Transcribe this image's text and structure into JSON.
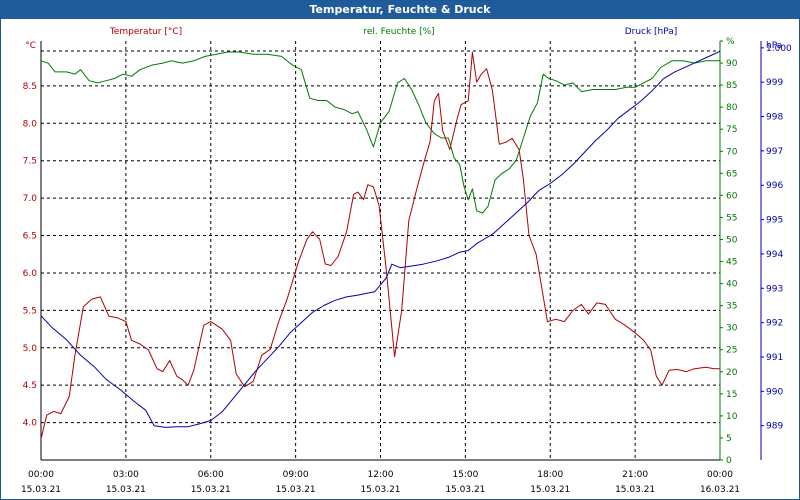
{
  "window": {
    "title": "Temperatur, Feuchte & Druck"
  },
  "colors": {
    "temperature": "#b00000",
    "humidity": "#007a00",
    "pressure": "#0000b0",
    "grid": "#000000",
    "titlebar": "#1f5c99"
  },
  "chart_data": {
    "type": "line",
    "title": "Temperatur, Feuchte & Druck",
    "x_labels": [
      {
        "time": "00:00",
        "date": "15.03.21"
      },
      {
        "time": "03:00",
        "date": "15.03.21"
      },
      {
        "time": "06:00",
        "date": "15.03.21"
      },
      {
        "time": "09:00",
        "date": "15.03.21"
      },
      {
        "time": "12:00",
        "date": "15.03.21"
      },
      {
        "time": "15:00",
        "date": "15.03.21"
      },
      {
        "time": "18:00",
        "date": "15.03.21"
      },
      {
        "time": "21:00",
        "date": "15.03.21"
      },
      {
        "time": "00:00",
        "date": "16.03.21"
      }
    ],
    "xlim": [
      0,
      24
    ],
    "axes": {
      "temperature": {
        "label": "Temperatur [°C]",
        "unit": "°C",
        "ylim": [
          3.5,
          9.1
        ],
        "ticks": [
          "4.0",
          "4.5",
          "5.0",
          "5.5",
          "6.0",
          "6.5",
          "7.0",
          "7.5",
          "8.0",
          "8.5"
        ],
        "tick_values": [
          4.0,
          4.5,
          5.0,
          5.5,
          6.0,
          6.5,
          7.0,
          7.5,
          8.0,
          8.5
        ]
      },
      "humidity": {
        "label": "rel. Feuchte [%]",
        "unit": "%",
        "ylim": [
          0,
          95
        ],
        "ticks": [
          "0",
          "5",
          "10",
          "15",
          "20",
          "25",
          "30",
          "35",
          "40",
          "45",
          "50",
          "55",
          "60",
          "65",
          "70",
          "75",
          "80",
          "85",
          "90",
          "95"
        ],
        "tick_values": [
          0,
          5,
          10,
          15,
          20,
          25,
          30,
          35,
          40,
          45,
          50,
          55,
          60,
          65,
          70,
          75,
          80,
          85,
          90,
          95
        ]
      },
      "pressure": {
        "label": "Druck [hPa]",
        "unit": "hPa",
        "ylim": [
          988.0,
          1000.2
        ],
        "ticks": [
          "989",
          "990",
          "991",
          "992",
          "993",
          "994",
          "995",
          "996",
          "997",
          "998",
          "999",
          "1.000"
        ],
        "tick_values": [
          989,
          990,
          991,
          992,
          993,
          994,
          995,
          996,
          997,
          998,
          999,
          1000
        ]
      }
    },
    "series": [
      {
        "name": "Temperatur [°C]",
        "axis": "temperature",
        "points": [
          [
            0.0,
            3.78
          ],
          [
            0.2,
            4.1
          ],
          [
            0.45,
            4.15
          ],
          [
            0.7,
            4.12
          ],
          [
            1.0,
            4.35
          ],
          [
            1.2,
            4.9
          ],
          [
            1.5,
            5.55
          ],
          [
            1.8,
            5.65
          ],
          [
            2.1,
            5.68
          ],
          [
            2.4,
            5.42
          ],
          [
            2.7,
            5.4
          ],
          [
            3.0,
            5.35
          ],
          [
            3.2,
            5.1
          ],
          [
            3.5,
            5.05
          ],
          [
            3.8,
            4.97
          ],
          [
            4.1,
            4.72
          ],
          [
            4.3,
            4.68
          ],
          [
            4.55,
            4.83
          ],
          [
            4.8,
            4.62
          ],
          [
            5.0,
            4.57
          ],
          [
            5.2,
            4.5
          ],
          [
            5.4,
            4.7
          ],
          [
            5.75,
            5.3
          ],
          [
            6.0,
            5.35
          ],
          [
            6.4,
            5.25
          ],
          [
            6.7,
            5.1
          ],
          [
            6.9,
            4.65
          ],
          [
            7.2,
            4.48
          ],
          [
            7.5,
            4.55
          ],
          [
            7.8,
            4.9
          ],
          [
            8.1,
            4.98
          ],
          [
            8.4,
            5.35
          ],
          [
            8.7,
            5.65
          ],
          [
            9.1,
            6.15
          ],
          [
            9.4,
            6.45
          ],
          [
            9.6,
            6.55
          ],
          [
            9.85,
            6.45
          ],
          [
            10.05,
            6.12
          ],
          [
            10.25,
            6.1
          ],
          [
            10.5,
            6.22
          ],
          [
            10.8,
            6.55
          ],
          [
            11.05,
            7.05
          ],
          [
            11.2,
            7.08
          ],
          [
            11.4,
            6.98
          ],
          [
            11.55,
            7.18
          ],
          [
            11.75,
            7.15
          ],
          [
            11.95,
            6.9
          ],
          [
            12.2,
            6.05
          ],
          [
            12.5,
            4.88
          ],
          [
            12.75,
            5.5
          ],
          [
            13.0,
            6.7
          ],
          [
            13.3,
            7.15
          ],
          [
            13.55,
            7.5
          ],
          [
            13.75,
            7.75
          ],
          [
            13.9,
            8.3
          ],
          [
            14.05,
            8.4
          ],
          [
            14.2,
            7.9
          ],
          [
            14.45,
            7.65
          ],
          [
            14.7,
            8.05
          ],
          [
            14.85,
            8.25
          ],
          [
            15.1,
            8.3
          ],
          [
            15.25,
            8.95
          ],
          [
            15.4,
            8.55
          ],
          [
            15.55,
            8.65
          ],
          [
            15.75,
            8.73
          ],
          [
            15.95,
            8.45
          ],
          [
            16.2,
            7.72
          ],
          [
            16.45,
            7.75
          ],
          [
            16.65,
            7.8
          ],
          [
            16.9,
            7.65
          ],
          [
            17.05,
            7.25
          ],
          [
            17.25,
            6.5
          ],
          [
            17.5,
            6.25
          ],
          [
            17.7,
            5.8
          ],
          [
            17.9,
            5.35
          ],
          [
            18.2,
            5.38
          ],
          [
            18.5,
            5.35
          ],
          [
            18.8,
            5.5
          ],
          [
            19.1,
            5.58
          ],
          [
            19.35,
            5.45
          ],
          [
            19.65,
            5.6
          ],
          [
            19.95,
            5.58
          ],
          [
            20.3,
            5.38
          ],
          [
            20.65,
            5.3
          ],
          [
            21.0,
            5.2
          ],
          [
            21.3,
            5.1
          ],
          [
            21.55,
            4.97
          ],
          [
            21.75,
            4.62
          ],
          [
            21.95,
            4.5
          ],
          [
            22.2,
            4.7
          ],
          [
            22.5,
            4.71
          ],
          [
            22.8,
            4.68
          ],
          [
            23.1,
            4.72
          ],
          [
            23.5,
            4.74
          ],
          [
            23.8,
            4.72
          ],
          [
            24.0,
            4.72
          ]
        ]
      },
      {
        "name": "rel. Feuchte [%]",
        "axis": "humidity",
        "points": [
          [
            0.0,
            90.5
          ],
          [
            0.25,
            90.0
          ],
          [
            0.5,
            88.0
          ],
          [
            0.9,
            88.0
          ],
          [
            1.2,
            87.5
          ],
          [
            1.4,
            88.5
          ],
          [
            1.7,
            86.0
          ],
          [
            2.0,
            85.5
          ],
          [
            2.3,
            86.0
          ],
          [
            2.6,
            86.5
          ],
          [
            2.9,
            87.5
          ],
          [
            3.2,
            87.0
          ],
          [
            3.5,
            88.5
          ],
          [
            3.9,
            89.5
          ],
          [
            4.3,
            90.0
          ],
          [
            4.6,
            90.5
          ],
          [
            5.0,
            90.0
          ],
          [
            5.4,
            90.5
          ],
          [
            5.8,
            91.5
          ],
          [
            6.2,
            92.0
          ],
          [
            6.6,
            92.5
          ],
          [
            7.0,
            92.5
          ],
          [
            7.5,
            92.0
          ],
          [
            8.0,
            92.0
          ],
          [
            8.5,
            91.5
          ],
          [
            8.9,
            89.5
          ],
          [
            9.2,
            88.5
          ],
          [
            9.5,
            82.0
          ],
          [
            9.8,
            81.5
          ],
          [
            10.1,
            81.5
          ],
          [
            10.4,
            80.0
          ],
          [
            10.7,
            79.5
          ],
          [
            11.0,
            78.5
          ],
          [
            11.2,
            79.0
          ],
          [
            11.5,
            75.0
          ],
          [
            11.75,
            71.0
          ],
          [
            12.0,
            76.5
          ],
          [
            12.3,
            79.0
          ],
          [
            12.6,
            85.5
          ],
          [
            12.85,
            86.5
          ],
          [
            13.1,
            84.0
          ],
          [
            13.35,
            80.5
          ],
          [
            13.6,
            76.5
          ],
          [
            13.9,
            74.0
          ],
          [
            14.15,
            73.0
          ],
          [
            14.4,
            73.0
          ],
          [
            14.6,
            68.5
          ],
          [
            14.8,
            67.0
          ],
          [
            14.95,
            62.0
          ],
          [
            15.1,
            59.0
          ],
          [
            15.25,
            61.5
          ],
          [
            15.4,
            56.5
          ],
          [
            15.6,
            56.0
          ],
          [
            15.8,
            57.5
          ],
          [
            16.05,
            63.5
          ],
          [
            16.3,
            65.0
          ],
          [
            16.55,
            66.0
          ],
          [
            16.8,
            68.0
          ],
          [
            17.05,
            73.0
          ],
          [
            17.3,
            78.0
          ],
          [
            17.55,
            81.0
          ],
          [
            17.75,
            87.5
          ],
          [
            17.95,
            86.5
          ],
          [
            18.2,
            86.0
          ],
          [
            18.5,
            85.0
          ],
          [
            18.8,
            85.5
          ],
          [
            19.1,
            83.5
          ],
          [
            19.5,
            84.0
          ],
          [
            19.9,
            84.0
          ],
          [
            20.3,
            84.0
          ],
          [
            20.7,
            84.5
          ],
          [
            21.0,
            84.5
          ],
          [
            21.3,
            85.5
          ],
          [
            21.6,
            86.5
          ],
          [
            21.9,
            89.0
          ],
          [
            22.3,
            90.5
          ],
          [
            22.7,
            90.5
          ],
          [
            23.1,
            90.0
          ],
          [
            23.5,
            90.5
          ],
          [
            24.0,
            90.5
          ]
        ]
      },
      {
        "name": "Druck [hPa]",
        "axis": "pressure",
        "points": [
          [
            0.0,
            992.2
          ],
          [
            0.4,
            991.85
          ],
          [
            0.9,
            991.5
          ],
          [
            1.4,
            991.05
          ],
          [
            1.9,
            990.7
          ],
          [
            2.3,
            990.35
          ],
          [
            2.8,
            990.05
          ],
          [
            3.3,
            989.7
          ],
          [
            3.7,
            989.45
          ],
          [
            4.0,
            989.0
          ],
          [
            4.4,
            988.95
          ],
          [
            4.8,
            988.97
          ],
          [
            5.2,
            988.97
          ],
          [
            5.6,
            989.05
          ],
          [
            6.0,
            989.15
          ],
          [
            6.4,
            989.4
          ],
          [
            6.8,
            989.8
          ],
          [
            7.2,
            990.2
          ],
          [
            7.6,
            990.6
          ],
          [
            8.0,
            990.95
          ],
          [
            8.4,
            991.3
          ],
          [
            8.8,
            991.7
          ],
          [
            9.2,
            992.0
          ],
          [
            9.6,
            992.3
          ],
          [
            10.0,
            992.5
          ],
          [
            10.4,
            992.65
          ],
          [
            10.8,
            992.75
          ],
          [
            11.2,
            992.8
          ],
          [
            11.5,
            992.85
          ],
          [
            11.8,
            992.9
          ],
          [
            12.0,
            993.1
          ],
          [
            12.2,
            993.3
          ],
          [
            12.4,
            993.7
          ],
          [
            12.7,
            993.6
          ],
          [
            13.1,
            993.65
          ],
          [
            13.5,
            993.7
          ],
          [
            14.0,
            993.8
          ],
          [
            14.4,
            993.9
          ],
          [
            14.8,
            994.05
          ],
          [
            15.1,
            994.1
          ],
          [
            15.4,
            994.3
          ],
          [
            15.7,
            994.45
          ],
          [
            16.0,
            994.6
          ],
          [
            16.4,
            994.9
          ],
          [
            16.8,
            995.2
          ],
          [
            17.2,
            995.5
          ],
          [
            17.6,
            995.85
          ],
          [
            18.0,
            996.05
          ],
          [
            18.4,
            996.3
          ],
          [
            18.8,
            996.6
          ],
          [
            19.2,
            996.95
          ],
          [
            19.6,
            997.3
          ],
          [
            20.0,
            997.6
          ],
          [
            20.4,
            997.95
          ],
          [
            20.8,
            998.2
          ],
          [
            21.2,
            998.45
          ],
          [
            21.6,
            998.75
          ],
          [
            22.0,
            999.1
          ],
          [
            22.4,
            999.3
          ],
          [
            22.8,
            999.45
          ],
          [
            23.2,
            999.6
          ],
          [
            23.6,
            999.75
          ],
          [
            24.0,
            999.9
          ]
        ]
      }
    ]
  }
}
